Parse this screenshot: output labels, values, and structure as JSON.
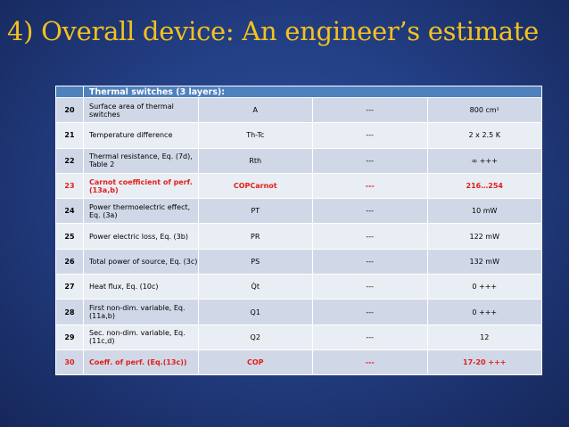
{
  "title": "4) Overall device: An engineer’s estimate",
  "table": {
    "header_label": "Thermal switches (3 layers):",
    "rows": [
      {
        "num": "20",
        "desc": "Surface area of thermal switches",
        "sym": "A",
        "dim": "---",
        "val": "800 cm²",
        "red": false
      },
      {
        "num": "21",
        "desc": "Temperature difference",
        "sym": "Th-Tc",
        "dim": "---",
        "val": "2 x 2.5 K",
        "red": false
      },
      {
        "num": "22",
        "desc": "Thermal resistance, Eq. (7d), Table 2",
        "sym": "Rth",
        "dim": "---",
        "val": "∞ +++",
        "red": false
      },
      {
        "num": "23",
        "desc": "Carnot coefficient of perf. (13a,b)",
        "sym": "COPCarnot",
        "dim": "---",
        "val": "216…254",
        "red": true
      },
      {
        "num": "24",
        "desc": "Power thermoelectric effect, Eq. (3a)",
        "sym": "PT",
        "dim": "---",
        "val": "10 mW",
        "red": false
      },
      {
        "num": "25",
        "desc": "Power electric loss, Eq. (3b)",
        "sym": "PR",
        "dim": "---",
        "val": "122 mW",
        "red": false
      },
      {
        "num": "26",
        "desc": "Total power of source, Eq. (3c)",
        "sym": "PS",
        "dim": "---",
        "val": "132 mW",
        "red": false
      },
      {
        "num": "27",
        "desc": "Heat flux, Eq. (10c)",
        "sym": "Q̇t",
        "dim": "---",
        "val": "0 +++",
        "red": false
      },
      {
        "num": "28",
        "desc": "First non-dim. variable, Eq. (11a,b)",
        "sym": "Q1",
        "dim": "---",
        "val": "0 +++",
        "red": false
      },
      {
        "num": "29",
        "desc": "Sec. non-dim. variable, Eq. (11c,d)",
        "sym": "Q2",
        "dim": "---",
        "val": "12",
        "red": false
      },
      {
        "num": "30",
        "desc": "Coeff. of perf.  (Eq.(13c))",
        "sym": "COP",
        "dim": "---",
        "val": "17-20 +++",
        "red": true
      }
    ]
  }
}
